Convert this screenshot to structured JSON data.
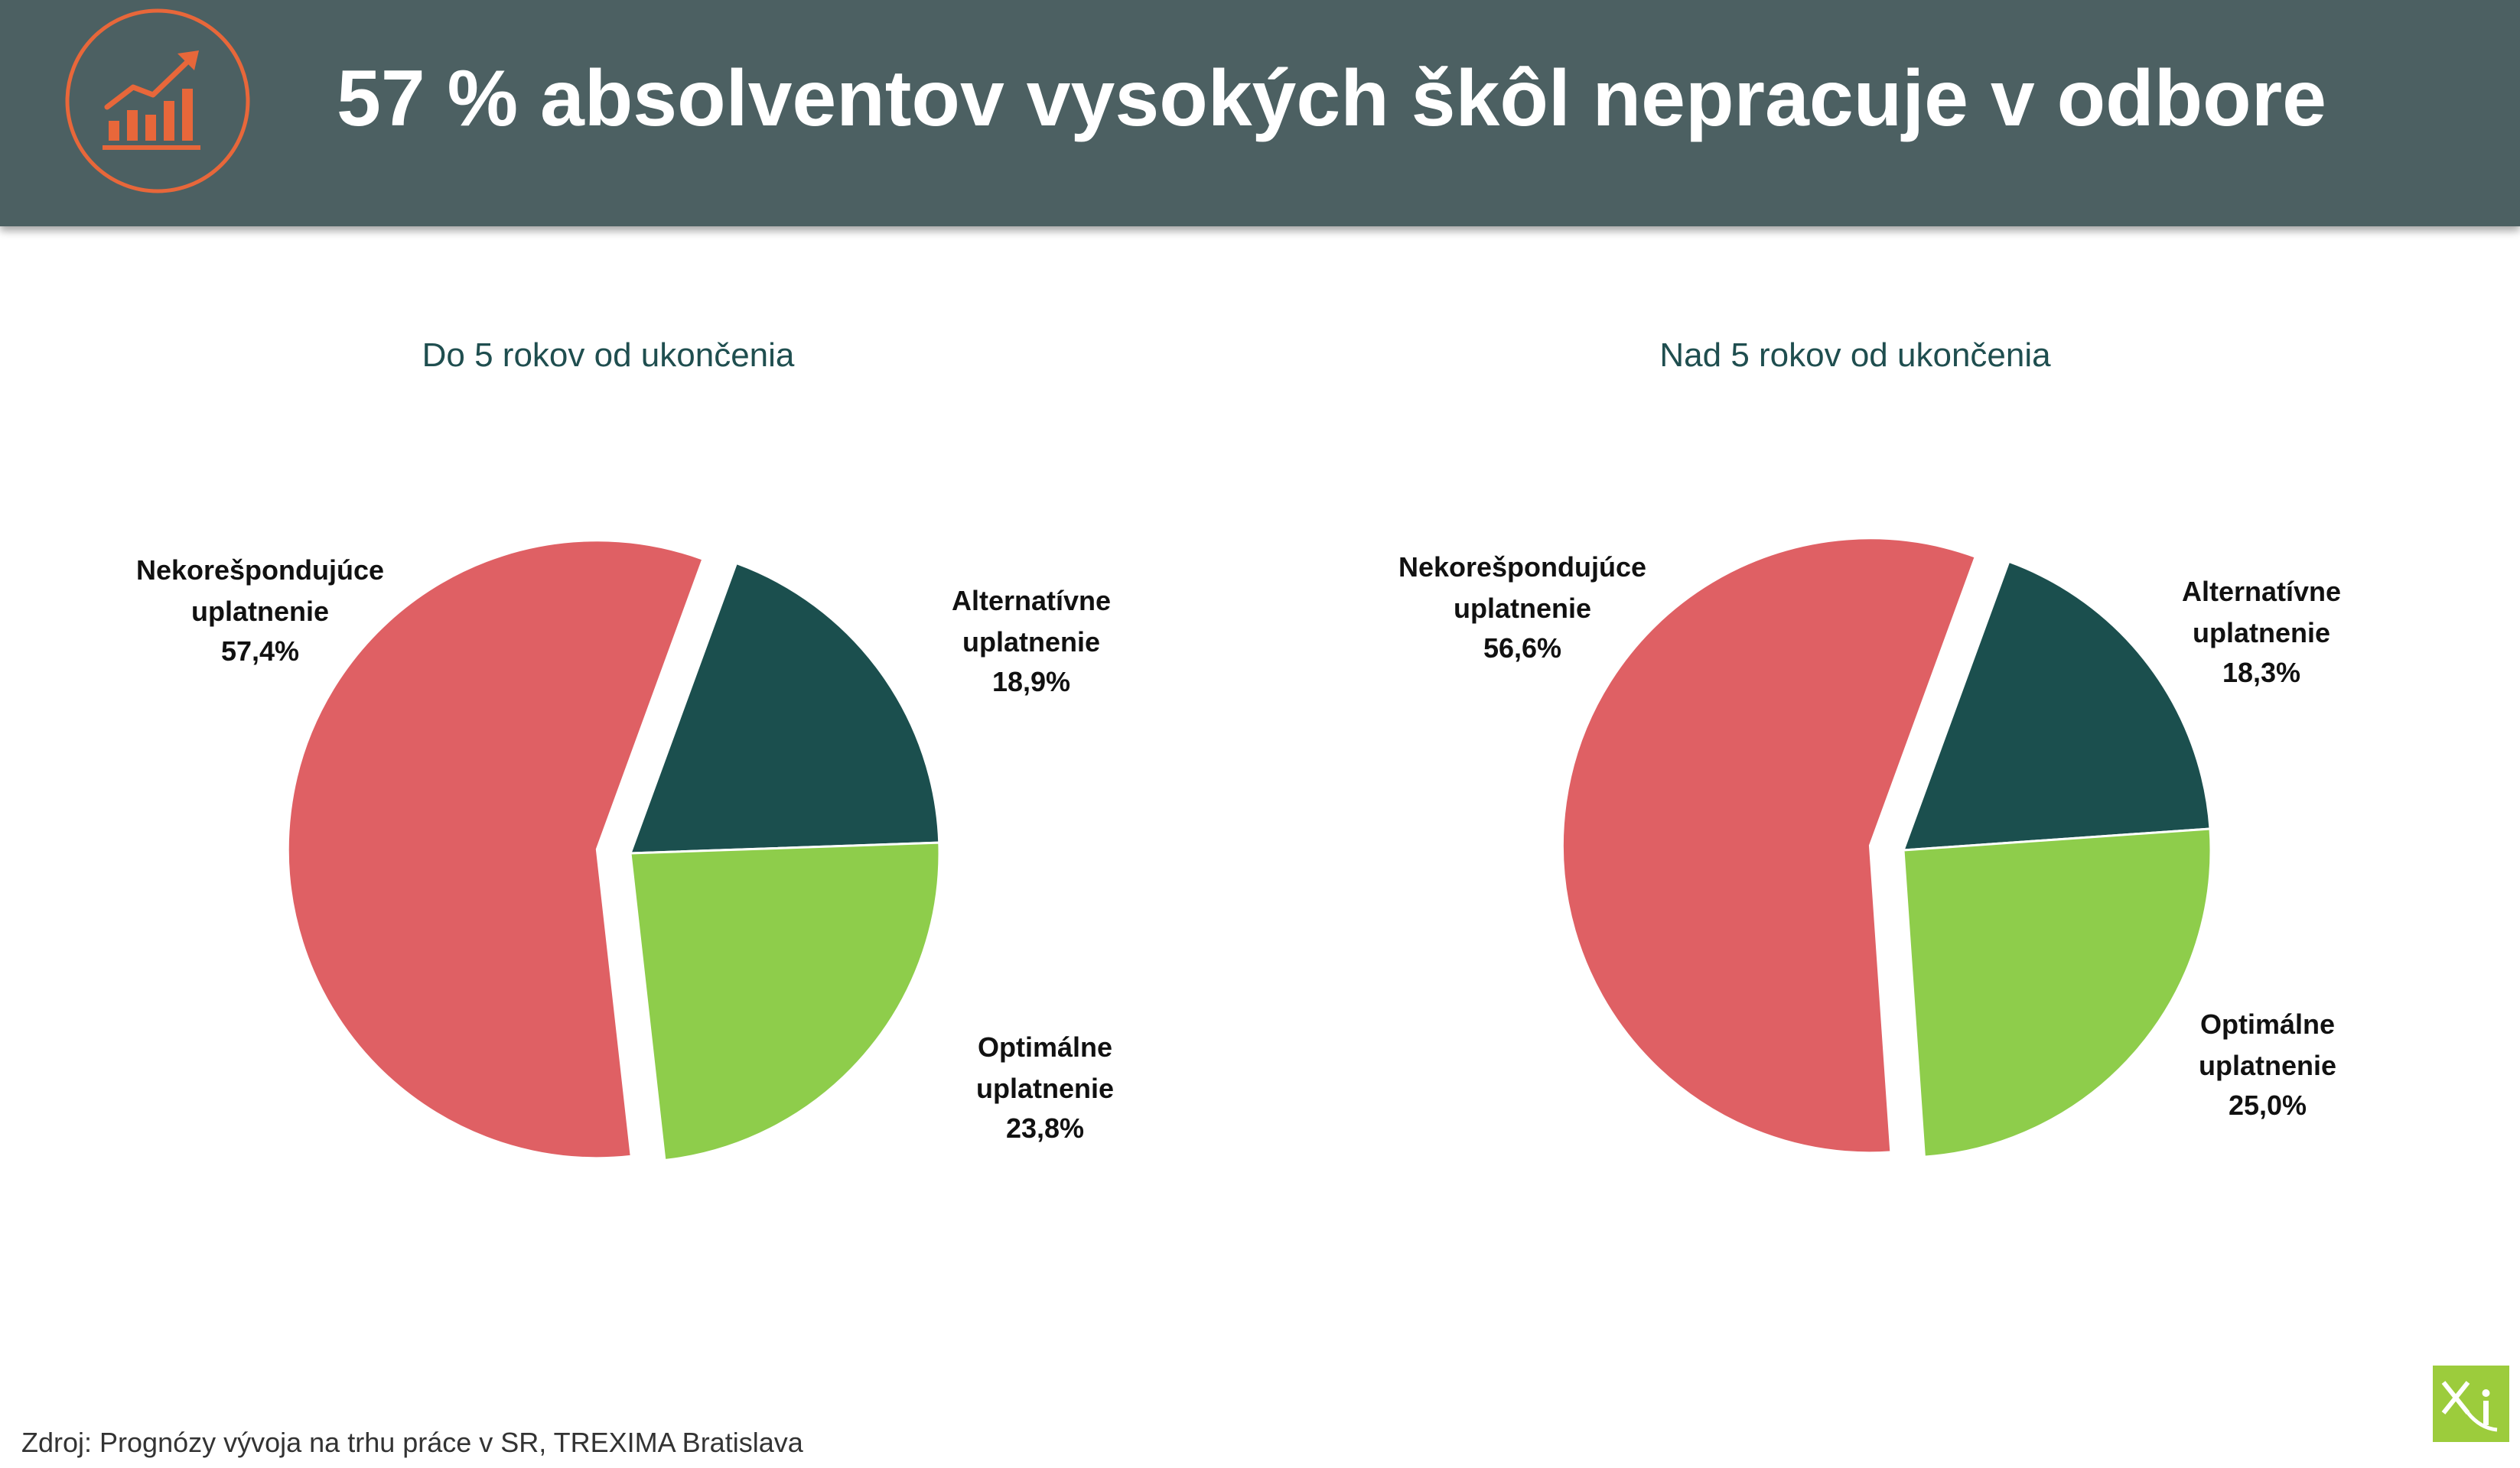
{
  "header": {
    "title": "57 % absolventov vysokých škôl nepracuje v odbore",
    "icon": "growth-chart-icon",
    "icon_color": "#e8673a",
    "background": "#4c6062"
  },
  "chart_data": [
    {
      "type": "pie",
      "title": "Do 5 rokov od ukončenia",
      "slices": [
        {
          "label_line1": "Nekorešpondujúce",
          "label_line2": "uplatnenie",
          "value_text": "57,4%",
          "value": 57.4,
          "color": "#df6064"
        },
        {
          "label_line1": "Alternatívne",
          "label_line2": "uplatnenie",
          "value_text": "18,9%",
          "value": 18.9,
          "color": "#1b4f4e"
        },
        {
          "label_line1": "Optimálne",
          "label_line2": "uplatnenie",
          "value_text": "23,8%",
          "value": 23.8,
          "color": "#8ecd4b"
        }
      ],
      "exploded_slice": "Nekorešpondujúce uplatnenie"
    },
    {
      "type": "pie",
      "title": "Nad 5 rokov od ukončenia",
      "slices": [
        {
          "label_line1": "Nekorešpondujúce",
          "label_line2": "uplatnenie",
          "value_text": "56,6%",
          "value": 56.6,
          "color": "#df6064"
        },
        {
          "label_line1": "Alternatívne",
          "label_line2": "uplatnenie",
          "value_text": "18,3%",
          "value": 18.3,
          "color": "#1b4f4e"
        },
        {
          "label_line1": "Optimálne",
          "label_line2": "uplatnenie",
          "value_text": "25,0%",
          "value": 25.0,
          "color": "#8ecd4b"
        }
      ],
      "exploded_slice": "Nekorešpondujúce uplatnenie"
    }
  ],
  "footer": {
    "source": "Zdroj: Prognózy vývoja na trhu práce v SR, TREXIMA Bratislava",
    "logo": "xi-logo-icon",
    "logo_color": "#9ccc3c"
  }
}
